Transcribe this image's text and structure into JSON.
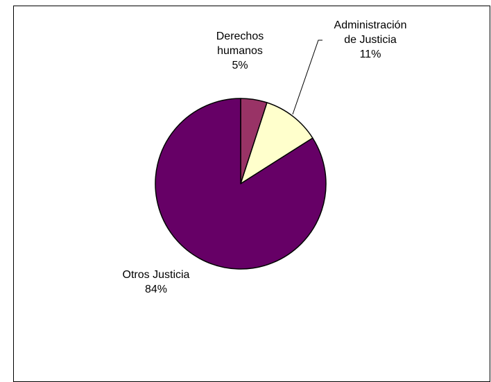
{
  "chart_data": {
    "type": "pie",
    "title": "",
    "legend": "none",
    "slices": [
      {
        "label_lines": [
          "Derechos",
          "humanos"
        ],
        "value": 5,
        "value_label": "5%",
        "color": "#993366"
      },
      {
        "label_lines": [
          "Administración",
          "de Justicia"
        ],
        "value": 11,
        "value_label": "11%",
        "color": "#FFFFCC"
      },
      {
        "label_lines": [
          "Otros Justicia"
        ],
        "value": 84,
        "value_label": "84%",
        "color": "#660066"
      }
    ]
  }
}
